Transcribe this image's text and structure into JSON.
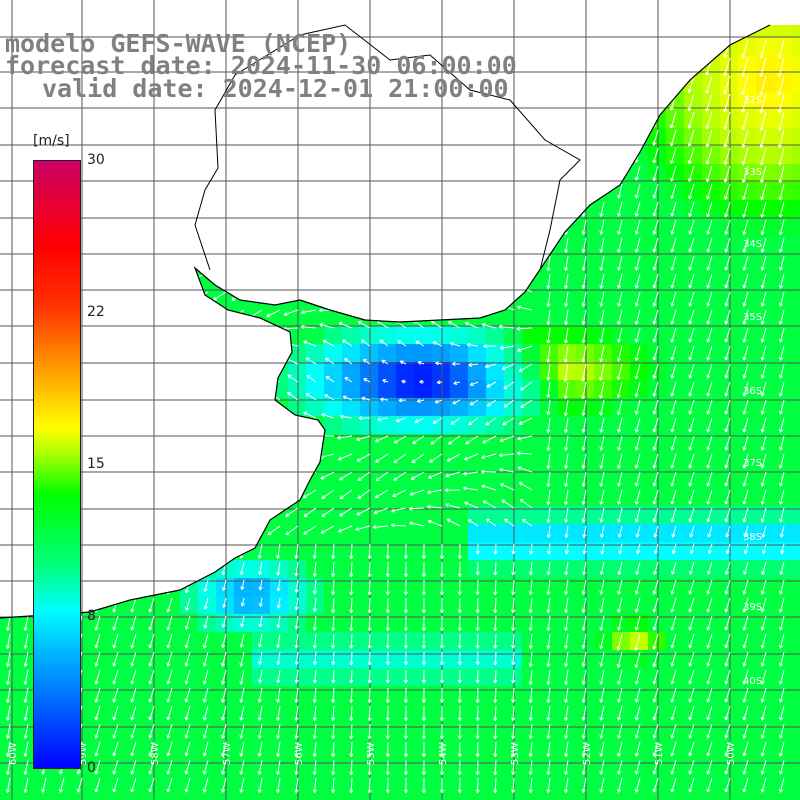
{
  "title": {
    "model": "modelo GEFS-WAVE (NCEP)",
    "forecast": "forecast date: 2024-11-30 06:00:00",
    "valid": "valid date: 2024-12-01 21:00:00"
  },
  "colorbar": {
    "unit": "[m/s]",
    "ticks": [
      "30",
      "22",
      "15",
      "8",
      "0"
    ],
    "colors": [
      "#0000ff",
      "#00ffff",
      "#00ff00",
      "#ffff00",
      "#ff0000",
      "#cc0066"
    ]
  },
  "map": {
    "lat_labels": [
      "32S",
      "33S",
      "34S",
      "35S",
      "36S",
      "37S",
      "38S",
      "39S",
      "40S"
    ],
    "lon_labels": [
      "60W",
      "59W",
      "58W",
      "57W",
      "56W",
      "55W",
      "54W",
      "53W",
      "52W",
      "51W",
      "50W"
    ]
  }
}
